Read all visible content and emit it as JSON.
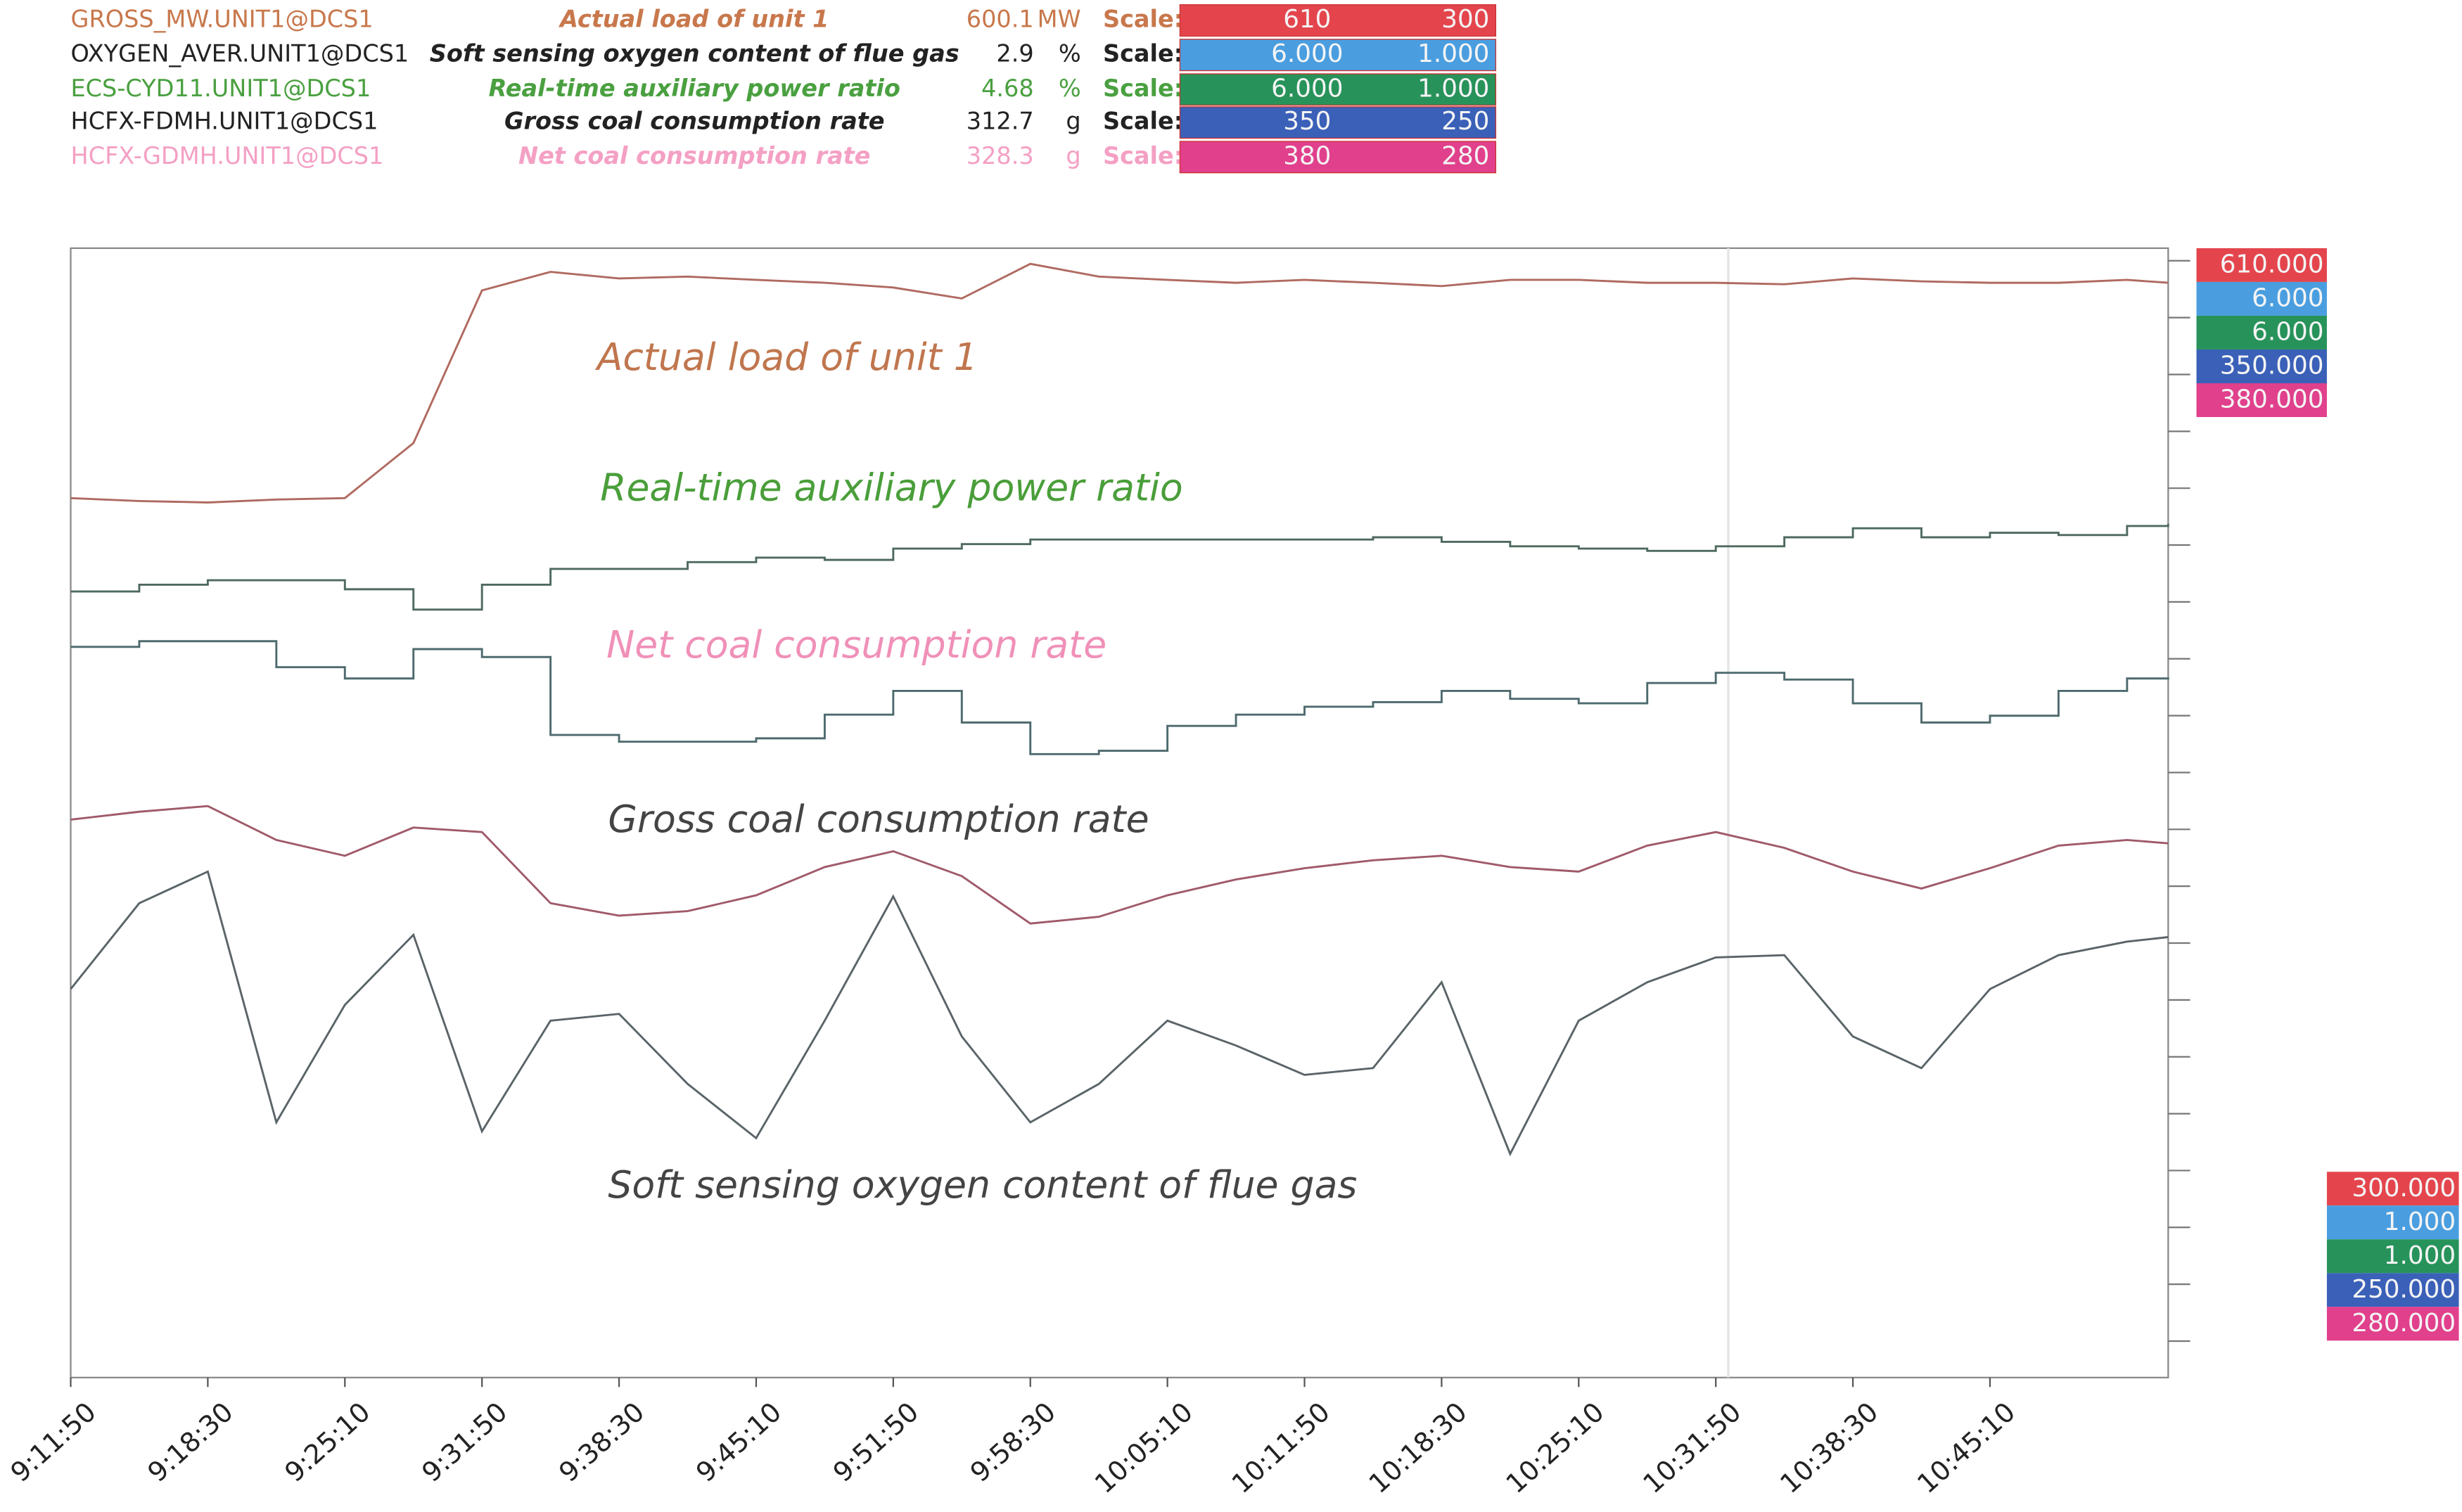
{
  "chart_data": {
    "type": "line",
    "scale_label": "Scale:",
    "x": [
      "9:11:50",
      "9:15:10",
      "9:18:30",
      "9:21:50",
      "9:25:10",
      "9:28:30",
      "9:31:50",
      "9:35:10",
      "9:38:30",
      "9:41:50",
      "9:45:10",
      "9:48:30",
      "9:51:50",
      "9:55:10",
      "9:58:30",
      "10:01:50",
      "10:05:10",
      "10:08:30",
      "10:11:50",
      "10:15:10",
      "10:18:30",
      "10:21:50",
      "10:25:10",
      "10:28:30",
      "10:31:50",
      "10:35:10",
      "10:38:30",
      "10:41:50",
      "10:45:10",
      "10:48:30",
      "10:51:50",
      "10:53:50"
    ],
    "xlim": [
      "9:11:50",
      "10:53:50"
    ],
    "xticks": [
      "9:11:50",
      "9:18:30",
      "9:25:10",
      "9:31:50",
      "9:38:30",
      "9:45:10",
      "9:51:50",
      "9:58:30",
      "10:05:10",
      "10:11:50",
      "10:18:30",
      "10:25:10",
      "10:31:50",
      "10:38:30",
      "10:45:10"
    ],
    "series": [
      {
        "name": "GROSS_MW.UNIT1@DCS1",
        "description": "Actual load of unit 1",
        "value_now": 600.1,
        "unit": "MW",
        "color": "#c8784c",
        "line_color": "#b06a60",
        "scale_color": "#e4454d",
        "step": false,
        "ylim": [
          300,
          610
        ],
        "ylim_labels": [
          "300",
          "610"
        ],
        "ylim_box_labels": [
          "300.000",
          "610.000"
        ],
        "values": [
          541.4,
          540.6,
          540.2,
          541.0,
          541.4,
          556.5,
          598.4,
          603.5,
          601.7,
          602.2,
          601.3,
          600.5,
          599.2,
          596.2,
          605.7,
          602.2,
          601.3,
          600.5,
          601.3,
          600.5,
          599.6,
          601.3,
          601.3,
          600.5,
          600.5,
          600.1,
          601.7,
          600.9,
          600.5,
          600.5,
          601.3,
          600.5
        ]
      },
      {
        "name": "OXYGEN_AVER.UNIT1@DCS1",
        "description": "Soft sensing oxygen content of flue gas",
        "value_now": 2.9,
        "unit": "%",
        "color": "#222222",
        "line_color": "#5a6468",
        "scale_color": "#4a9ee0",
        "step": false,
        "ylim": [
          1,
          6
        ],
        "ylim_labels": [
          "1.000",
          "6.000"
        ],
        "ylim_box_labels": [
          "1.000",
          "6.000"
        ],
        "values": [
          2.72,
          3.1,
          3.24,
          2.13,
          2.65,
          2.96,
          2.09,
          2.58,
          2.61,
          2.3,
          2.06,
          2.58,
          3.13,
          2.51,
          2.13,
          2.3,
          2.58,
          2.47,
          2.34,
          2.37,
          2.75,
          1.99,
          2.58,
          2.75,
          2.86,
          2.87,
          2.51,
          2.37,
          2.72,
          2.87,
          2.93,
          2.95
        ]
      },
      {
        "name": "ECS-CYD11.UNIT1@DCS1",
        "description": "Real-time auxiliary power ratio",
        "value_now": 4.68,
        "unit": "%",
        "color": "#4aa040",
        "line_color": "#4e6a5e",
        "scale_color": "#27935a",
        "step": true,
        "ylim": [
          1,
          6
        ],
        "ylim_labels": [
          "1.000",
          "6.000"
        ],
        "ylim_box_labels": [
          "1.000",
          "6.000"
        ],
        "values": [
          4.48,
          4.51,
          4.53,
          4.53,
          4.49,
          4.4,
          4.51,
          4.58,
          4.58,
          4.61,
          4.63,
          4.62,
          4.67,
          4.69,
          4.71,
          4.71,
          4.71,
          4.71,
          4.71,
          4.72,
          4.7,
          4.68,
          4.67,
          4.66,
          4.68,
          4.72,
          4.76,
          4.72,
          4.74,
          4.73,
          4.77,
          4.78
        ]
      },
      {
        "name": "HCFX-FDMH.UNIT1@DCS1",
        "description": "Gross coal consumption rate",
        "value_now": 312.7,
        "unit": "g",
        "color": "#222222",
        "line_color": "#4e6a6e",
        "scale_color": "#3a60b8",
        "step": true,
        "ylim": [
          250,
          350
        ],
        "ylim_labels": [
          "250",
          "350"
        ],
        "ylim_box_labels": [
          "250.000",
          "350.000"
        ],
        "values": [
          314.7,
          315.2,
          315.2,
          312.9,
          311.9,
          314.5,
          313.8,
          306.9,
          306.3,
          306.3,
          306.6,
          308.7,
          310.8,
          308.0,
          305.2,
          305.5,
          307.7,
          308.7,
          309.4,
          309.8,
          310.8,
          310.1,
          309.7,
          311.5,
          312.4,
          311.8,
          309.7,
          308.0,
          308.6,
          310.8,
          311.9,
          311.8
        ]
      },
      {
        "name": "HCFX-GDMH.UNIT1@DCS1",
        "description": "Net coal consumption rate",
        "value_now": 328.3,
        "unit": "g",
        "color": "#f4a0c4",
        "line_color": "#a05a6a",
        "scale_color": "#e0408c",
        "step": false,
        "ylim": [
          280,
          380
        ],
        "ylim_labels": [
          "280",
          "380"
        ],
        "ylim_box_labels": [
          "280.000",
          "380.000"
        ],
        "values": [
          329.4,
          330.1,
          330.6,
          327.6,
          326.2,
          328.7,
          328.3,
          322.0,
          320.9,
          321.3,
          322.7,
          325.2,
          326.6,
          324.4,
          320.2,
          320.8,
          322.7,
          324.1,
          325.1,
          325.8,
          326.2,
          325.2,
          324.8,
          327.1,
          328.3,
          326.9,
          324.8,
          323.3,
          325.1,
          327.1,
          327.6,
          327.3
        ]
      }
    ],
    "annotations": [
      {
        "text": "Actual load of unit 1",
        "color": "#c0764e"
      },
      {
        "text": "Real-time auxiliary power ratio",
        "color": "#4a9e3a"
      },
      {
        "text": "Net coal consumption rate",
        "color": "#f090b8"
      },
      {
        "text": "Gross coal consumption rate",
        "color": "#444444"
      },
      {
        "text": "Soft sensing oxygen content of flue gas",
        "color": "#444444"
      }
    ]
  }
}
